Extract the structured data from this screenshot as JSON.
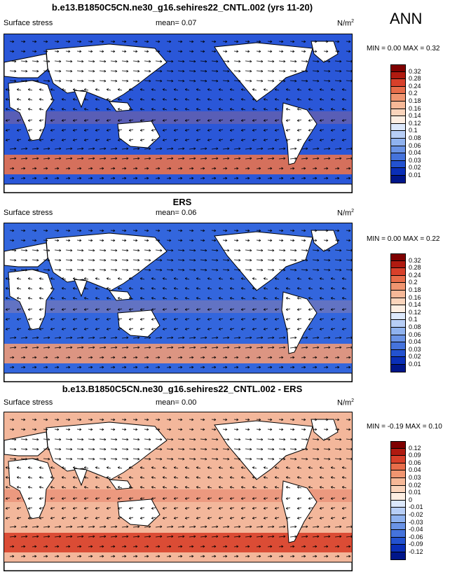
{
  "season": "ANN",
  "colors": {
    "land": "#ffffff",
    "coast": "#000000"
  },
  "panels": [
    {
      "title": "b.e13.B1850C5CN.ne30_g16.sehires22_CNTL.002 (yrs 11-20)",
      "variable": "Surface stress",
      "mean": "mean=  0.07",
      "units": "N/m",
      "units_sup": "2",
      "minmax": "MIN =   0.00 MAX =   0.32",
      "ocean_color": "#2a57d8",
      "jet_color": "#e8734f",
      "colorbar": {
        "labels": [
          "0.32",
          "0.28",
          "0.24",
          "0.2",
          "0.18",
          "0.16",
          "0.14",
          "0.12",
          "0.1",
          "0.08",
          "0.06",
          "0.04",
          "0.03",
          "0.02",
          "0.01"
        ],
        "colors": [
          "#7f0000",
          "#b01a10",
          "#d8402a",
          "#e86d4a",
          "#f09570",
          "#f6b897",
          "#fad4bb",
          "#fdeee2",
          "#dce8fb",
          "#b7cef6",
          "#8fb2ef",
          "#6a93e6",
          "#4573dc",
          "#2352d0",
          "#0a2fb8",
          "#00168a"
        ]
      }
    },
    {
      "title": "ERS",
      "variable": "Surface stress",
      "mean": "mean=  0.06",
      "units": "N/m",
      "units_sup": "2",
      "minmax": "MIN =   0.00 MAX =   0.22",
      "ocean_color": "#3366dd",
      "jet_color": "#ee9a78",
      "colorbar": {
        "labels": [
          "0.32",
          "0.28",
          "0.24",
          "0.2",
          "0.18",
          "0.16",
          "0.14",
          "0.12",
          "0.1",
          "0.08",
          "0.06",
          "0.04",
          "0.03",
          "0.02",
          "0.01"
        ],
        "colors": [
          "#7f0000",
          "#b01a10",
          "#d8402a",
          "#e86d4a",
          "#f09570",
          "#f6b897",
          "#fad4bb",
          "#fdeee2",
          "#dce8fb",
          "#b7cef6",
          "#8fb2ef",
          "#6a93e6",
          "#4573dc",
          "#2352d0",
          "#0a2fb8",
          "#00168a"
        ]
      }
    },
    {
      "title": "b.e13.B1850C5CN.ne30_g16.sehires22_CNTL.002 - ERS",
      "variable": "Surface stress",
      "mean": "mean=  0.00",
      "units": "N/m",
      "units_sup": "2",
      "minmax": "MIN = -0.19 MAX =  0.10",
      "ocean_color": "#f3b79b",
      "jet_color": "#d8402a",
      "colorbar": {
        "labels": [
          "0.12",
          "0.09",
          "0.06",
          "0.04",
          "0.03",
          "0.02",
          "0.01",
          "0",
          "-0.01",
          "-0.02",
          "-0.03",
          "-0.04",
          "-0.06",
          "-0.09",
          "-0.12"
        ],
        "colors": [
          "#7f0000",
          "#b01a10",
          "#d8402a",
          "#e86d4a",
          "#f09570",
          "#f6b897",
          "#fad4bb",
          "#fdeee2",
          "#dce8fb",
          "#b7cef6",
          "#8fb2ef",
          "#6a93e6",
          "#4573dc",
          "#2352d0",
          "#0a2fb8",
          "#00168a"
        ]
      }
    }
  ]
}
